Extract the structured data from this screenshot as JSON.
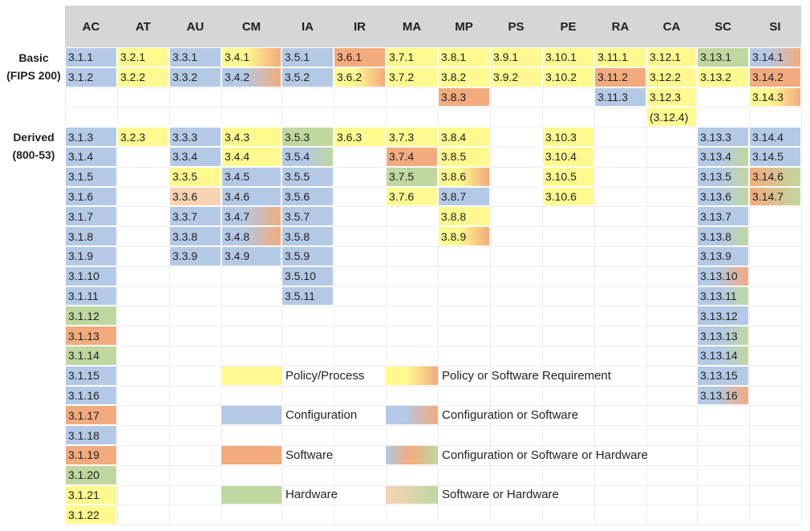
{
  "columns": [
    "AC",
    "AT",
    "AU",
    "CM",
    "IA",
    "IR",
    "MA",
    "MP",
    "PS",
    "PE",
    "RA",
    "CA",
    "SC",
    "SI"
  ],
  "row_groups": [
    {
      "lines": [
        "Basic",
        "(FIPS 200)"
      ]
    },
    {
      "lines": [
        "Derived",
        "(800-53)"
      ]
    }
  ],
  "colors": {
    "policy": "#fff98f",
    "config": "#b4c9e6",
    "software": "#f3ab7e",
    "hardware": "#c0d79f",
    "swhw_light": "#f8d3b4",
    "header_band": "#d6d6d6"
  },
  "cells": [
    {
      "col": 0,
      "row": 0,
      "text": "3.1.1",
      "cat": "config"
    },
    {
      "col": 0,
      "row": 1,
      "text": "3.1.2",
      "cat": "config"
    },
    {
      "col": 0,
      "row": 4,
      "text": "3.1.3",
      "cat": "config"
    },
    {
      "col": 0,
      "row": 5,
      "text": "3.1.4",
      "cat": "config"
    },
    {
      "col": 0,
      "row": 6,
      "text": "3.1.5",
      "cat": "config"
    },
    {
      "col": 0,
      "row": 7,
      "text": "3.1.6",
      "cat": "config"
    },
    {
      "col": 0,
      "row": 8,
      "text": "3.1.7",
      "cat": "config"
    },
    {
      "col": 0,
      "row": 9,
      "text": "3.1.8",
      "cat": "config"
    },
    {
      "col": 0,
      "row": 10,
      "text": "3.1.9",
      "cat": "config"
    },
    {
      "col": 0,
      "row": 11,
      "text": "3.1.10",
      "cat": "config"
    },
    {
      "col": 0,
      "row": 12,
      "text": "3.1.11",
      "cat": "config"
    },
    {
      "col": 0,
      "row": 13,
      "text": "3.1.12",
      "cat": "hardware"
    },
    {
      "col": 0,
      "row": 14,
      "text": "3.1.13",
      "cat": "software"
    },
    {
      "col": 0,
      "row": 15,
      "text": "3.1.14",
      "cat": "hardware"
    },
    {
      "col": 0,
      "row": 16,
      "text": "3.1.15",
      "cat": "config"
    },
    {
      "col": 0,
      "row": 17,
      "text": "3.1.16",
      "cat": "config"
    },
    {
      "col": 0,
      "row": 18,
      "text": "3.1.17",
      "cat": "software"
    },
    {
      "col": 0,
      "row": 19,
      "text": "3.1.18",
      "cat": "config"
    },
    {
      "col": 0,
      "row": 20,
      "text": "3.1.19",
      "cat": "software"
    },
    {
      "col": 0,
      "row": 21,
      "text": "3.1.20",
      "cat": "hardware"
    },
    {
      "col": 0,
      "row": 22,
      "text": "3.1.21",
      "cat": "policy"
    },
    {
      "col": 0,
      "row": 23,
      "text": "3.1.22",
      "cat": "policy"
    },
    {
      "col": 1,
      "row": 0,
      "text": "3.2.1",
      "cat": "policy"
    },
    {
      "col": 1,
      "row": 1,
      "text": "3.2.2",
      "cat": "policy"
    },
    {
      "col": 1,
      "row": 4,
      "text": "3.2.3",
      "cat": "policy"
    },
    {
      "col": 2,
      "row": 0,
      "text": "3.3.1",
      "cat": "config"
    },
    {
      "col": 2,
      "row": 1,
      "text": "3.3.2",
      "cat": "config"
    },
    {
      "col": 2,
      "row": 4,
      "text": "3.3.3",
      "cat": "config"
    },
    {
      "col": 2,
      "row": 5,
      "text": "3.3.4",
      "cat": "config"
    },
    {
      "col": 2,
      "row": 6,
      "text": "3.3.5",
      "cat": "policy"
    },
    {
      "col": 2,
      "row": 7,
      "text": "3.3.6",
      "cat": "swhw_light"
    },
    {
      "col": 2,
      "row": 8,
      "text": "3.3.7",
      "cat": "config"
    },
    {
      "col": 2,
      "row": 9,
      "text": "3.3.8",
      "cat": "config"
    },
    {
      "col": 2,
      "row": 10,
      "text": "3.3.9",
      "cat": "config"
    },
    {
      "col": 3,
      "row": 0,
      "text": "3.4.1",
      "cat": "policy_or_software"
    },
    {
      "col": 3,
      "row": 1,
      "text": "3.4.2",
      "cat": "config_or_software"
    },
    {
      "col": 3,
      "row": 4,
      "text": "3.4.3",
      "cat": "policy"
    },
    {
      "col": 3,
      "row": 5,
      "text": "3.4.4",
      "cat": "policy"
    },
    {
      "col": 3,
      "row": 6,
      "text": "3.4.5",
      "cat": "config"
    },
    {
      "col": 3,
      "row": 7,
      "text": "3.4.6",
      "cat": "config"
    },
    {
      "col": 3,
      "row": 8,
      "text": "3.4.7",
      "cat": "config_or_software"
    },
    {
      "col": 3,
      "row": 9,
      "text": "3.4.8",
      "cat": "config_or_software"
    },
    {
      "col": 3,
      "row": 10,
      "text": "3.4.9",
      "cat": "config"
    },
    {
      "col": 4,
      "row": 0,
      "text": "3.5.1",
      "cat": "config"
    },
    {
      "col": 4,
      "row": 1,
      "text": "3.5.2",
      "cat": "config"
    },
    {
      "col": 4,
      "row": 4,
      "text": "3.5.3",
      "cat": "hardware"
    },
    {
      "col": 4,
      "row": 5,
      "text": "3.5.4",
      "cat": "config_or_hardware"
    },
    {
      "col": 4,
      "row": 6,
      "text": "3.5.5",
      "cat": "config"
    },
    {
      "col": 4,
      "row": 7,
      "text": "3.5.6",
      "cat": "config"
    },
    {
      "col": 4,
      "row": 8,
      "text": "3.5.7",
      "cat": "config"
    },
    {
      "col": 4,
      "row": 9,
      "text": "3.5.8",
      "cat": "config"
    },
    {
      "col": 4,
      "row": 10,
      "text": "3.5.9",
      "cat": "config"
    },
    {
      "col": 4,
      "row": 11,
      "text": "3.5.10",
      "cat": "config"
    },
    {
      "col": 4,
      "row": 12,
      "text": "3.5.11",
      "cat": "config"
    },
    {
      "col": 5,
      "row": 0,
      "text": "3.6.1",
      "cat": "software"
    },
    {
      "col": 5,
      "row": 1,
      "text": "3.6.2",
      "cat": "policy_or_software"
    },
    {
      "col": 5,
      "row": 4,
      "text": "3.6.3",
      "cat": "policy"
    },
    {
      "col": 6,
      "row": 0,
      "text": "3.7.1",
      "cat": "policy"
    },
    {
      "col": 6,
      "row": 1,
      "text": "3.7.2",
      "cat": "policy"
    },
    {
      "col": 6,
      "row": 4,
      "text": "3.7.3",
      "cat": "policy"
    },
    {
      "col": 6,
      "row": 5,
      "text": "3.7.4",
      "cat": "software"
    },
    {
      "col": 6,
      "row": 6,
      "text": "3.7.5",
      "cat": "hardware"
    },
    {
      "col": 6,
      "row": 7,
      "text": "3.7.6",
      "cat": "policy"
    },
    {
      "col": 7,
      "row": 0,
      "text": "3.8.1",
      "cat": "policy"
    },
    {
      "col": 7,
      "row": 1,
      "text": "3.8.2",
      "cat": "policy"
    },
    {
      "col": 7,
      "row": 2,
      "text": "3.8.3",
      "cat": "software"
    },
    {
      "col": 7,
      "row": 4,
      "text": "3.8.4",
      "cat": "policy"
    },
    {
      "col": 7,
      "row": 5,
      "text": "3.8.5",
      "cat": "policy"
    },
    {
      "col": 7,
      "row": 6,
      "text": "3.8.6",
      "cat": "policy_or_software"
    },
    {
      "col": 7,
      "row": 7,
      "text": "3.8.7",
      "cat": "config"
    },
    {
      "col": 7,
      "row": 8,
      "text": "3.8.8",
      "cat": "policy"
    },
    {
      "col": 7,
      "row": 9,
      "text": "3.8.9",
      "cat": "policy_or_software"
    },
    {
      "col": 8,
      "row": 0,
      "text": "3.9.1",
      "cat": "policy"
    },
    {
      "col": 8,
      "row": 1,
      "text": "3.9.2",
      "cat": "policy"
    },
    {
      "col": 9,
      "row": 0,
      "text": "3.10.1",
      "cat": "policy"
    },
    {
      "col": 9,
      "row": 1,
      "text": "3.10.2",
      "cat": "policy"
    },
    {
      "col": 9,
      "row": 4,
      "text": "3.10.3",
      "cat": "policy"
    },
    {
      "col": 9,
      "row": 5,
      "text": "3.10.4",
      "cat": "policy"
    },
    {
      "col": 9,
      "row": 6,
      "text": "3.10.5",
      "cat": "policy"
    },
    {
      "col": 9,
      "row": 7,
      "text": "3.10.6",
      "cat": "policy"
    },
    {
      "col": 10,
      "row": 0,
      "text": "3.11.1",
      "cat": "policy"
    },
    {
      "col": 10,
      "row": 1,
      "text": "3.11.2",
      "cat": "software"
    },
    {
      "col": 10,
      "row": 2,
      "text": "3.11.3",
      "cat": "config"
    },
    {
      "col": 11,
      "row": 0,
      "text": "3.12.1",
      "cat": "policy"
    },
    {
      "col": 11,
      "row": 1,
      "text": "3.12.2",
      "cat": "policy"
    },
    {
      "col": 11,
      "row": 2,
      "text": "3.12.3",
      "cat": "policy"
    },
    {
      "col": 11,
      "row": 3,
      "text": "(3.12.4)",
      "cat": "policy"
    },
    {
      "col": 12,
      "row": 0,
      "text": "3.13.1",
      "cat": "hardware"
    },
    {
      "col": 12,
      "row": 1,
      "text": "3.13.2",
      "cat": "policy"
    },
    {
      "col": 12,
      "row": 4,
      "text": "3.13.3",
      "cat": "config"
    },
    {
      "col": 12,
      "row": 5,
      "text": "3.13.4",
      "cat": "config_or_hardware"
    },
    {
      "col": 12,
      "row": 6,
      "text": "3.13.5",
      "cat": "config_or_hardware"
    },
    {
      "col": 12,
      "row": 7,
      "text": "3.13.6",
      "cat": "config_or_hardware"
    },
    {
      "col": 12,
      "row": 8,
      "text": "3.13.7",
      "cat": "config"
    },
    {
      "col": 12,
      "row": 9,
      "text": "3.13.8",
      "cat": "config_or_hardware"
    },
    {
      "col": 12,
      "row": 10,
      "text": "3.13.9",
      "cat": "config"
    },
    {
      "col": 12,
      "row": 11,
      "text": "3.13.10",
      "cat": "config_or_software"
    },
    {
      "col": 12,
      "row": 12,
      "text": "3.13.11",
      "cat": "config_or_hardware"
    },
    {
      "col": 12,
      "row": 13,
      "text": "3.13.12",
      "cat": "config"
    },
    {
      "col": 12,
      "row": 14,
      "text": "3.13.13",
      "cat": "config_or_hardware"
    },
    {
      "col": 12,
      "row": 15,
      "text": "3.13.14",
      "cat": "config_or_hardware"
    },
    {
      "col": 12,
      "row": 16,
      "text": "3.13.15",
      "cat": "config"
    },
    {
      "col": 12,
      "row": 17,
      "text": "3.13.16",
      "cat": "config_or_software"
    },
    {
      "col": 13,
      "row": 0,
      "text": "3.14.1",
      "cat": "config_or_software"
    },
    {
      "col": 13,
      "row": 1,
      "text": "3.14.2",
      "cat": "software"
    },
    {
      "col": 13,
      "row": 2,
      "text": "3.14.3",
      "cat": "policy_or_software"
    },
    {
      "col": 13,
      "row": 4,
      "text": "3.14.4",
      "cat": "config"
    },
    {
      "col": 13,
      "row": 5,
      "text": "3.14.5",
      "cat": "config"
    },
    {
      "col": 13,
      "row": 6,
      "text": "3.14.6",
      "cat": "software_or_hardware"
    },
    {
      "col": 13,
      "row": 7,
      "text": "3.14.7",
      "cat": "software_or_hardware"
    }
  ],
  "legend": [
    {
      "label": "Policy/Process",
      "cat": "policy",
      "pos": 0
    },
    {
      "label": "Configuration",
      "cat": "config",
      "pos": 1
    },
    {
      "label": "Software",
      "cat": "software",
      "pos": 2
    },
    {
      "label": "Hardware",
      "cat": "hardware",
      "pos": 3
    },
    {
      "label": "Policy or Software Requirement",
      "cat": "policy_or_software",
      "pos": 4
    },
    {
      "label": "Configuration or Software",
      "cat": "config_or_software",
      "pos": 5
    },
    {
      "label": "Configuration or Software or Hardware",
      "cat": "config_sw_hw",
      "pos": 6
    },
    {
      "label": "Software or Hardware",
      "cat": "swhw_light_grad",
      "pos": 7
    }
  ]
}
